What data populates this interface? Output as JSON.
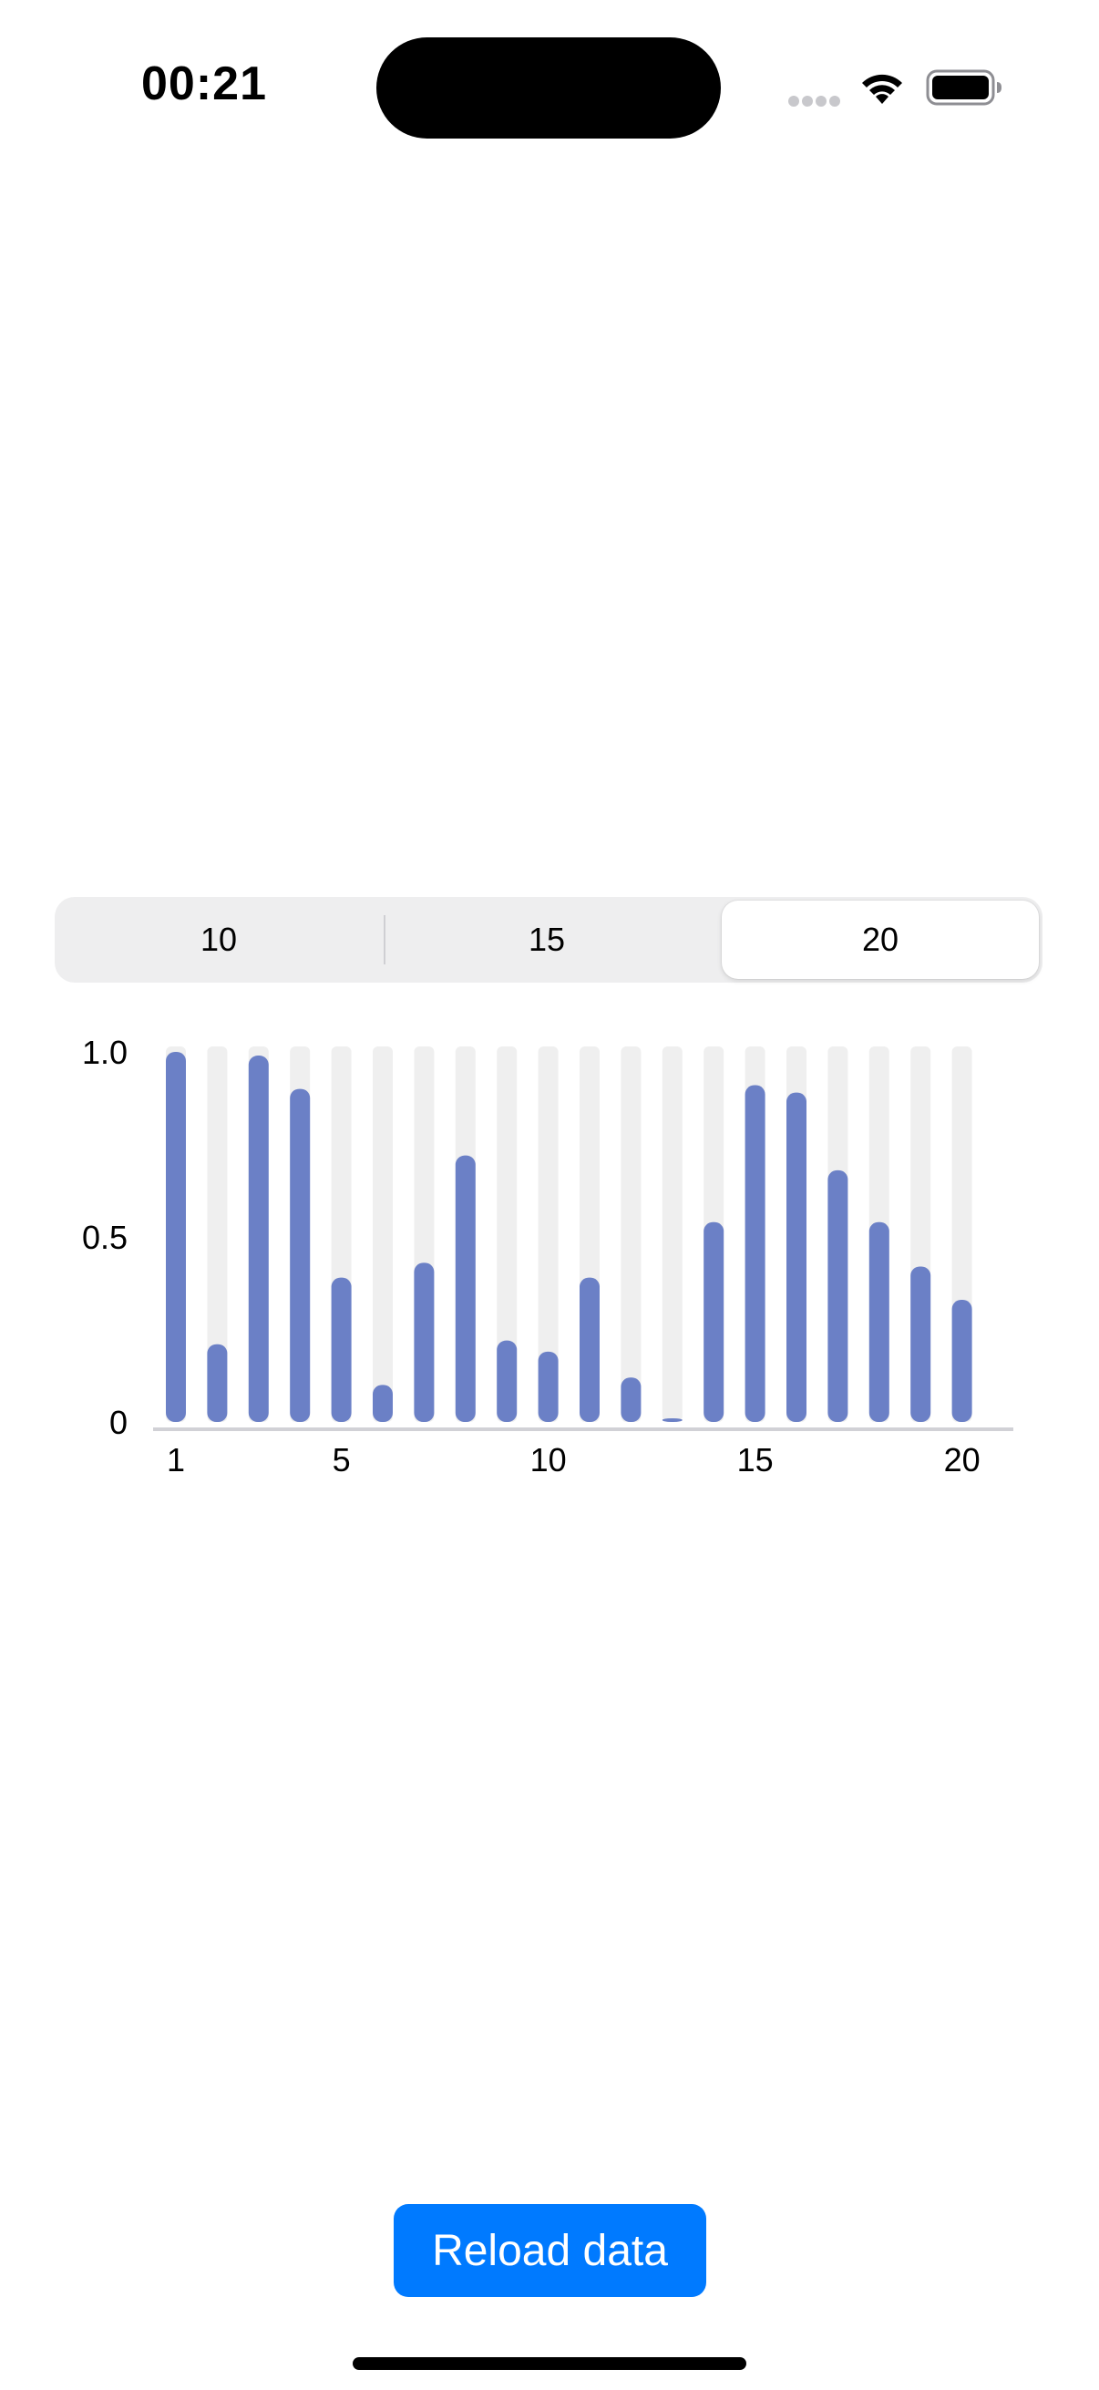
{
  "status_bar": {
    "time": "00:21"
  },
  "segmented_control": {
    "options": [
      "10",
      "15",
      "20"
    ],
    "selected": "20"
  },
  "chart_data": {
    "type": "bar",
    "categories": [
      "1",
      "2",
      "3",
      "4",
      "5",
      "6",
      "7",
      "8",
      "9",
      "10",
      "11",
      "12",
      "13",
      "14",
      "15",
      "16",
      "17",
      "18",
      "19",
      "20"
    ],
    "values": [
      1.0,
      0.21,
      0.99,
      0.9,
      0.39,
      0.1,
      0.43,
      0.72,
      0.22,
      0.19,
      0.39,
      0.12,
      0.01,
      0.54,
      0.91,
      0.89,
      0.68,
      0.54,
      0.42,
      0.33
    ],
    "ylim": [
      0,
      1.0
    ],
    "y_ticks": [
      "0",
      "0.5",
      "1.0"
    ],
    "x_ticks": [
      "1",
      "5",
      "10",
      "15",
      "20"
    ],
    "bar_color": "#6b80c6",
    "track_color": "#efefef",
    "grid": false
  },
  "actions": {
    "reload_label": "Reload data"
  },
  "colors": {
    "accent": "#007aff"
  }
}
